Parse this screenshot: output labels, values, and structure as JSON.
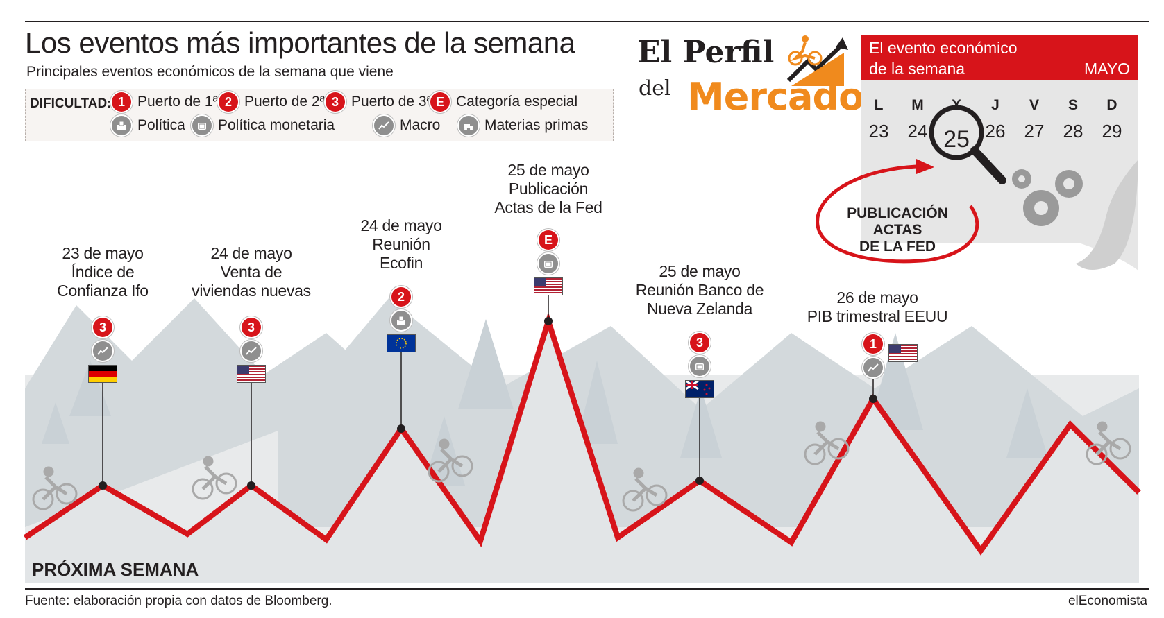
{
  "title": "Los eventos más importantes de la semana",
  "subtitle": "Principales eventos económicos de la semana que viene",
  "legend": {
    "heading": "DIFICULTAD:",
    "difficulty": [
      {
        "badge": "1",
        "label": "Puerto de 1ª"
      },
      {
        "badge": "2",
        "label": "Puerto de 2ª"
      },
      {
        "badge": "3",
        "label": "Puerto de 3ª"
      },
      {
        "badge": "E",
        "label": "Categoría especial"
      }
    ],
    "categories": [
      {
        "icon": "politics-icon",
        "label": "Política"
      },
      {
        "icon": "monetary-policy-icon",
        "label": "Política monetaria"
      },
      {
        "icon": "macro-icon",
        "label": "Macro"
      },
      {
        "icon": "commodities-icon",
        "label": "Materias primas"
      }
    ]
  },
  "brand": {
    "line1": "El Perfil",
    "line2a": "del",
    "line2b": "Mercado"
  },
  "calendar": {
    "header_line1": "El evento económico",
    "header_line2": "de la semana",
    "month": "MAYO",
    "days": [
      "L",
      "M",
      "X",
      "J",
      "V",
      "S",
      "D"
    ],
    "numbers": [
      "23",
      "24",
      "25",
      "26",
      "27",
      "28",
      "29"
    ],
    "highlight": "25",
    "highlight_label": [
      "PUBLICACIÓN",
      "ACTAS",
      "DE LA FED"
    ]
  },
  "events": [
    {
      "date": "23 de mayo",
      "lines": [
        "Índice de",
        "Confianza Ifo"
      ],
      "difficulty": "3",
      "category": "macro-icon",
      "flag": "germany-flag"
    },
    {
      "date": "24 de mayo",
      "lines": [
        "Venta de",
        "viviendas nuevas"
      ],
      "difficulty": "3",
      "category": "macro-icon",
      "flag": "usa-flag"
    },
    {
      "date": "24 de mayo",
      "lines": [
        "Reunión",
        "Ecofin"
      ],
      "difficulty": "2",
      "category": "politics-icon",
      "flag": "eu-flag"
    },
    {
      "date": "25 de mayo",
      "lines": [
        "Publicación",
        "Actas de la Fed"
      ],
      "difficulty": "E",
      "category": "monetary-policy-icon",
      "flag": "usa-flag"
    },
    {
      "date": "25 de mayo",
      "lines": [
        "Reunión Banco de",
        "Nueva Zelanda"
      ],
      "difficulty": "3",
      "category": "monetary-policy-icon",
      "flag": "new-zealand-flag"
    },
    {
      "date": "26 de mayo",
      "lines": [
        "PIB trimestral EEUU"
      ],
      "difficulty": "1",
      "category": "macro-icon",
      "flag": "usa-flag"
    }
  ],
  "bottom_label": "PRÓXIMA SEMANA",
  "source": "Fuente: elaboración propia con datos de Bloomberg.",
  "credit": "elEconomista",
  "colors": {
    "route": "#d7141a",
    "brand_orange": "#f08a1d",
    "mountains": "#c9d1d6"
  }
}
